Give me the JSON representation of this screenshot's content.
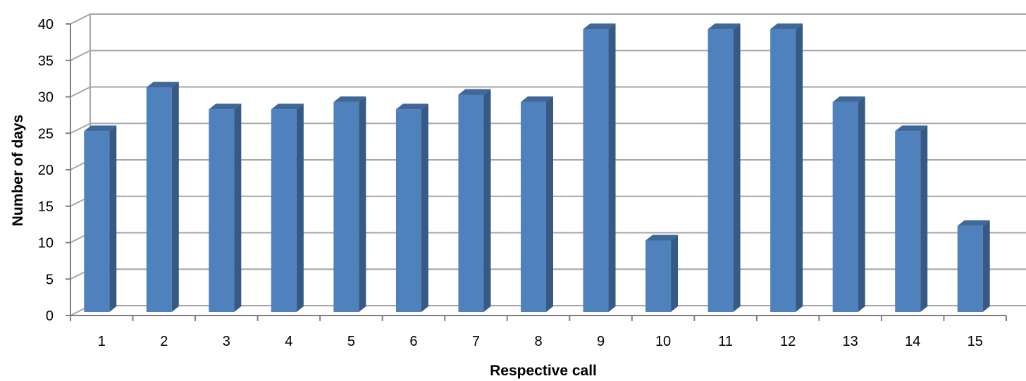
{
  "chart_data": {
    "type": "bar",
    "style": "3d-column",
    "title": "",
    "xlabel": "Respective call",
    "ylabel": "Number of days",
    "categories": [
      "1",
      "2",
      "3",
      "4",
      "5",
      "6",
      "7",
      "8",
      "9",
      "10",
      "11",
      "12",
      "13",
      "14",
      "15"
    ],
    "values": [
      25,
      31,
      28,
      28,
      29,
      28,
      30,
      29,
      39,
      10,
      39,
      39,
      29,
      25,
      12
    ],
    "ylim": [
      0,
      40
    ],
    "yticks": [
      0,
      5,
      10,
      15,
      20,
      25,
      30,
      35,
      40
    ],
    "grid": true,
    "legend": "none",
    "colors": {
      "bar_front": "#4F81BD",
      "bar_side": "#375A85",
      "bar_top": "#3F6797",
      "grid": "#A6A6A6",
      "axis": "#7F7F7F"
    }
  }
}
